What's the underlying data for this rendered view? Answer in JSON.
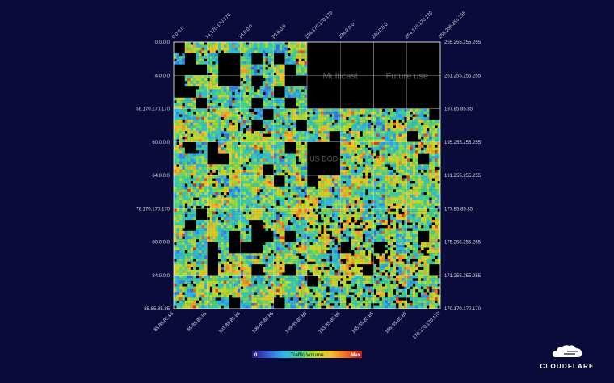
{
  "chart_data": {
    "type": "heatmap",
    "title": "",
    "description_note_free": true,
    "top_axis_labels": [
      "0.0.0.0",
      "14.170.170.170",
      "16.0.0.0",
      "20.0.0.0",
      "234.170.170.170",
      "236.0.0.0",
      "240.0.0.0",
      "254.170.170.170",
      "255.255.255.255"
    ],
    "bottom_axis_labels": [
      "85.85.85.85",
      "69.85.85.85",
      "101.85.85.85",
      "106.85.85.85",
      "149.85.85.85",
      "153.85.85.85",
      "165.85.85.85",
      "166.85.85.85",
      "170.170.170.170"
    ],
    "left_axis_labels": [
      "0.0.0.0",
      "4.0.0.0",
      "58.170.170.170",
      "60.0.0.0",
      "64.0.0.0",
      "78.170.170.170",
      "80.0.0.0",
      "84.0.0.0",
      "85.85.85.85"
    ],
    "right_axis_labels": [
      "255.255.255.255",
      "251.255.255.255",
      "197.85.85.85",
      "195.255.255.255",
      "191.255.255.255",
      "177.85.85.85",
      "175.255.255.255",
      "171.255.255.255",
      "170.170.170.170"
    ],
    "regions": [
      {
        "label": "Multicast",
        "cols": [
          4,
          6
        ],
        "rows": [
          0,
          2
        ]
      },
      {
        "label": "Future use",
        "cols": [
          6,
          8
        ],
        "rows": [
          0,
          2
        ]
      },
      {
        "label": "US DOD",
        "cols": [
          4,
          5
        ],
        "rows": [
          3,
          4
        ]
      }
    ],
    "color_scale": {
      "title": "Traffic Volume",
      "min_label": "0",
      "max_label": "Max",
      "colors": [
        "#2a1b7a",
        "#3b5bdb",
        "#2fb5e8",
        "#3fcf8e",
        "#b4dc2a",
        "#f2c12e",
        "#f06b2c",
        "#b81d1d"
      ]
    },
    "empty_color": "#000000",
    "grid_line_color": "#ffffff"
  },
  "brand": {
    "name": "CLOUDFLARE",
    "logo_icon": "cloud-icon",
    "color": "#ffffff"
  }
}
